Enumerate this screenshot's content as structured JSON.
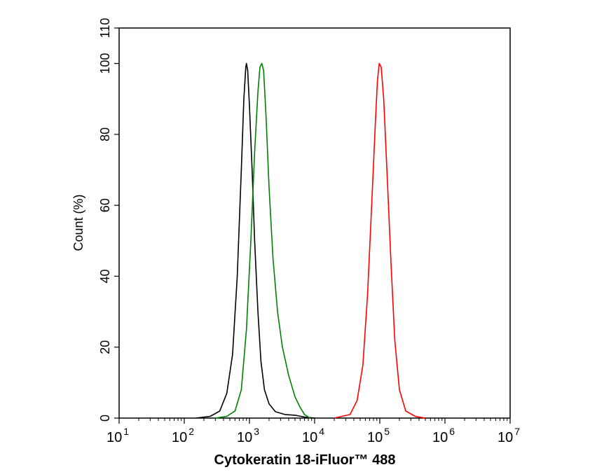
{
  "chart_data": {
    "type": "line",
    "title": "",
    "xlabel": "Cytokeratin 18-iFluor™ 488",
    "ylabel": "Count  (%)",
    "x_scale": "log10",
    "xlim": [
      10,
      10000000
    ],
    "ylim": [
      0,
      110
    ],
    "x_ticks": [
      {
        "base": "10",
        "exp": "1"
      },
      {
        "base": "10",
        "exp": "2"
      },
      {
        "base": "10",
        "exp": "3"
      },
      {
        "base": "10",
        "exp": "4"
      },
      {
        "base": "10",
        "exp": "5"
      },
      {
        "base": "10",
        "exp": "6"
      },
      {
        "base": "10",
        "exp": "7"
      }
    ],
    "y_ticks": [
      "0",
      "20",
      "40",
      "60",
      "80",
      "100",
      "110"
    ],
    "grid": false,
    "legend": "none",
    "series": [
      {
        "color": "#000000",
        "points": [
          [
            150,
            0
          ],
          [
            250,
            0.5
          ],
          [
            350,
            2
          ],
          [
            450,
            7
          ],
          [
            550,
            18
          ],
          [
            650,
            40
          ],
          [
            750,
            70
          ],
          [
            820,
            90
          ],
          [
            880,
            99
          ],
          [
            900,
            100
          ],
          [
            940,
            98
          ],
          [
            1000,
            88
          ],
          [
            1100,
            70
          ],
          [
            1200,
            50
          ],
          [
            1350,
            30
          ],
          [
            1500,
            16
          ],
          [
            1700,
            8
          ],
          [
            2000,
            4
          ],
          [
            2500,
            1.8
          ],
          [
            3500,
            1
          ],
          [
            5000,
            0.8
          ],
          [
            7000,
            0.3
          ],
          [
            10000,
            0
          ]
        ]
      },
      {
        "color": "#008000",
        "points": [
          [
            300,
            0
          ],
          [
            450,
            0.5
          ],
          [
            600,
            2
          ],
          [
            750,
            8
          ],
          [
            900,
            25
          ],
          [
            1050,
            50
          ],
          [
            1200,
            75
          ],
          [
            1350,
            92
          ],
          [
            1450,
            99
          ],
          [
            1550,
            100
          ],
          [
            1650,
            98
          ],
          [
            1800,
            85
          ],
          [
            2000,
            65
          ],
          [
            2300,
            45
          ],
          [
            2700,
            30
          ],
          [
            3200,
            20
          ],
          [
            4000,
            12
          ],
          [
            5000,
            6
          ],
          [
            6000,
            3
          ],
          [
            7000,
            1
          ],
          [
            8500,
            0
          ]
        ]
      },
      {
        "color": "#ff0000",
        "points": [
          [
            20000,
            0
          ],
          [
            35000,
            1
          ],
          [
            45000,
            5
          ],
          [
            55000,
            15
          ],
          [
            65000,
            35
          ],
          [
            75000,
            60
          ],
          [
            85000,
            82
          ],
          [
            92000,
            95
          ],
          [
            98000,
            100
          ],
          [
            105000,
            99
          ],
          [
            115000,
            90
          ],
          [
            130000,
            68
          ],
          [
            150000,
            42
          ],
          [
            170000,
            22
          ],
          [
            200000,
            8
          ],
          [
            250000,
            2
          ],
          [
            350000,
            0.5
          ],
          [
            500000,
            0
          ]
        ]
      }
    ]
  }
}
